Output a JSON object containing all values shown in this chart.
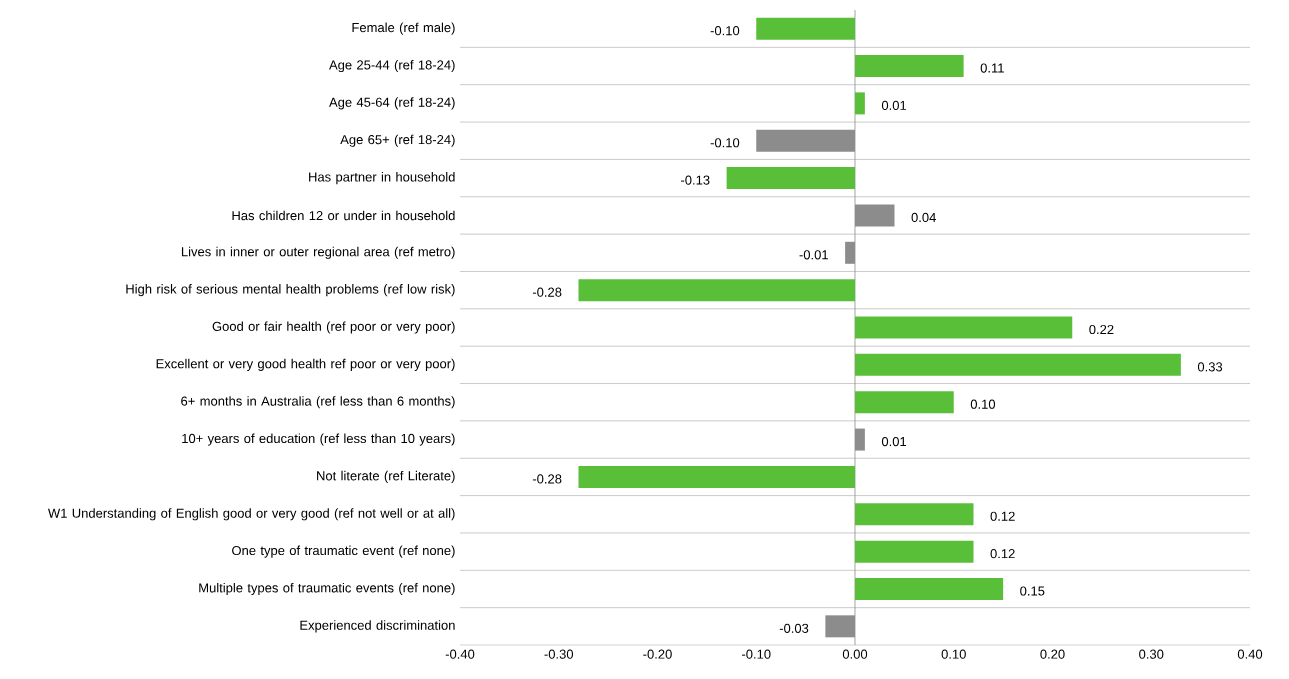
{
  "chart_data": {
    "type": "bar",
    "orientation": "horizontal",
    "grid": "y",
    "categories": [
      "Female (ref male)",
      "Age 25-44 (ref 18-24)",
      "Age 45-64 (ref 18-24)",
      "Age 65+ (ref 18-24)",
      "Has partner in household",
      "Has children 12 or under in household",
      "Lives in inner or outer regional area (ref metro)",
      "High risk of serious mental health problems (ref low risk)",
      "Good or fair health (ref poor or very poor)",
      "Excellent or very good health ref poor or very poor)",
      "6+ months in Australia (ref less than 6 months)",
      "10+ years of education (ref less than 10 years)",
      "Not literate (ref Literate)",
      "W1 Understanding of English good or very good (ref not well or at all)",
      "One type of traumatic event (ref none)",
      "Multiple types of traumatic events (ref none)",
      "Experienced discrimination"
    ],
    "values": [
      -0.1,
      0.11,
      0.01,
      -0.1,
      -0.13,
      0.04,
      -0.01,
      -0.28,
      0.22,
      0.33,
      0.1,
      0.01,
      -0.28,
      0.12,
      0.12,
      0.15,
      -0.03
    ],
    "value_labels": [
      "-0.10",
      "0.11",
      "0.01",
      "-0.10",
      "-0.13",
      "0.04",
      "-0.01",
      "-0.28",
      "0.22",
      "0.33",
      "0.10",
      "0.01",
      "-0.28",
      "0.12",
      "0.12",
      "0.15",
      "-0.03"
    ],
    "colors": [
      "#5abf38",
      "#5abf38",
      "#5abf38",
      "#8c8c8c",
      "#5abf38",
      "#8c8c8c",
      "#8c8c8c",
      "#5abf38",
      "#5abf38",
      "#5abf38",
      "#5abf38",
      "#8c8c8c",
      "#5abf38",
      "#5abf38",
      "#5abf38",
      "#5abf38",
      "#8c8c8c"
    ],
    "ref_lines": [
      {
        "axis": "x",
        "value": 0,
        "color": "#8c8c8c"
      }
    ],
    "xlim": [
      -0.4,
      0.4
    ],
    "xticks": [
      {
        "value": -0.4,
        "label": "-0.40"
      },
      {
        "value": -0.3,
        "label": "-0.30"
      },
      {
        "value": -0.2,
        "label": "-0.20"
      },
      {
        "value": -0.1,
        "label": "-0.10"
      },
      {
        "value": 0,
        "label": "0.00"
      },
      {
        "value": 0.1,
        "label": "0.10"
      },
      {
        "value": 0.2,
        "label": "0.20"
      },
      {
        "value": 0.3,
        "label": "0.30"
      },
      {
        "value": 0.4,
        "label": "0.40"
      }
    ]
  }
}
